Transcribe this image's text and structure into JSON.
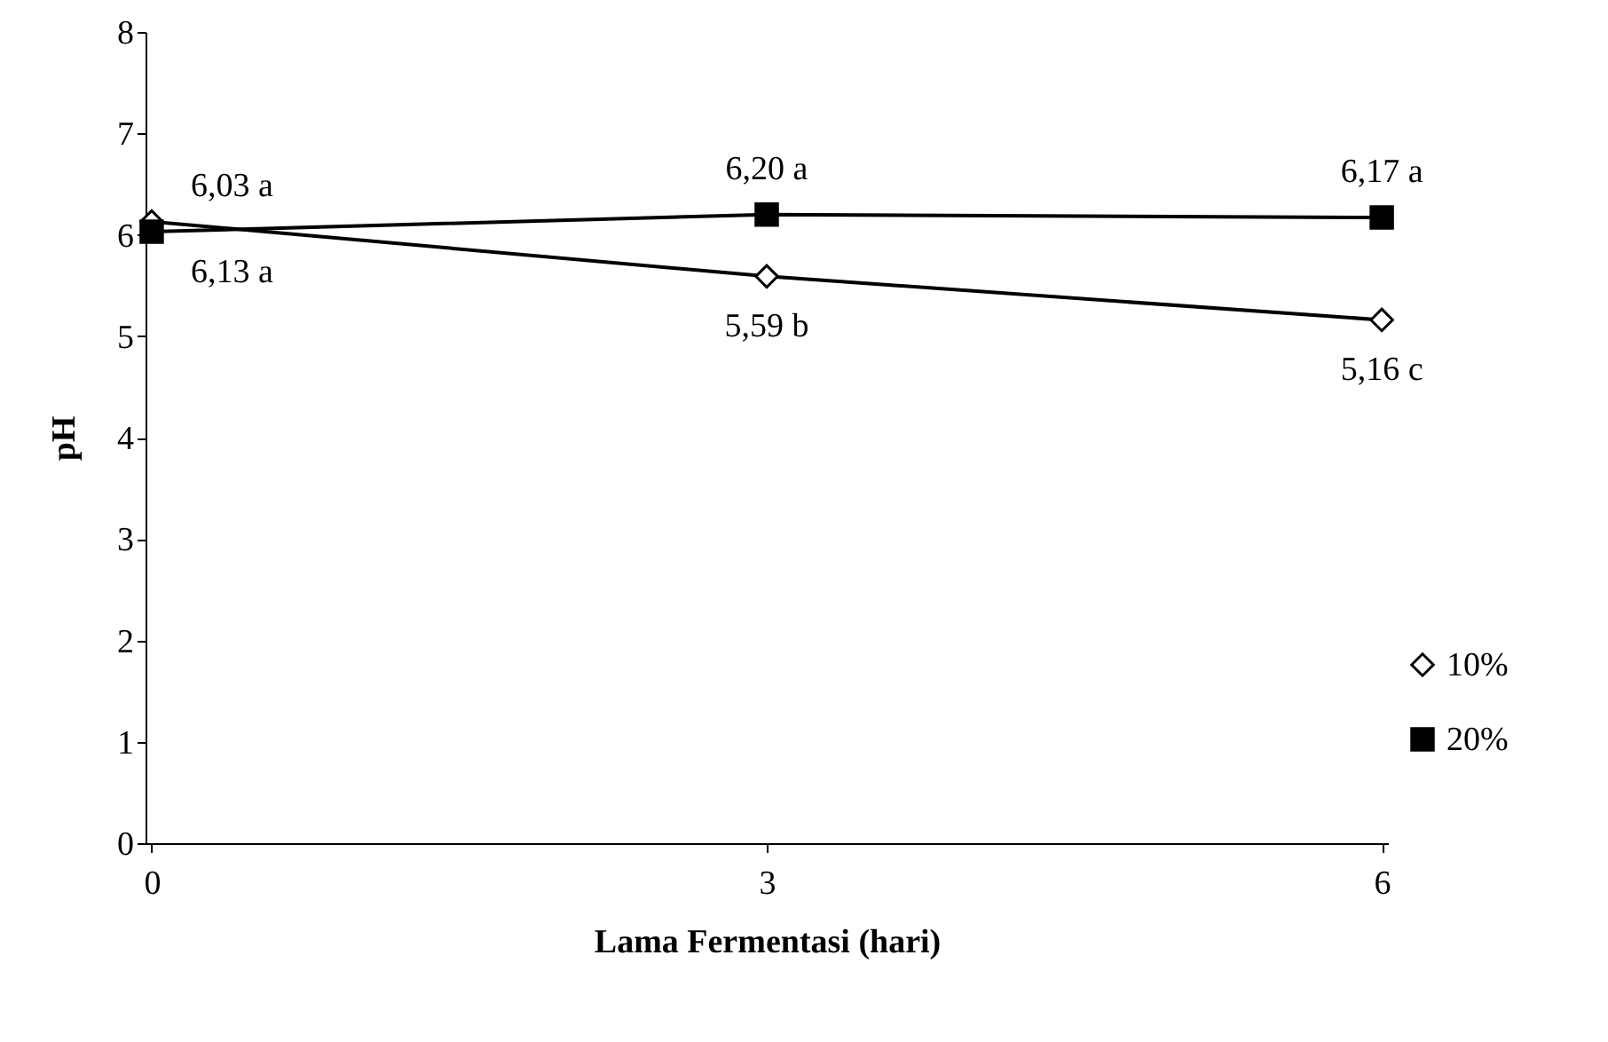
{
  "chart_data": {
    "type": "line",
    "xlabel": "Lama Fermentasi (hari)",
    "ylabel": "pH",
    "categories": [
      "0",
      "3",
      "6"
    ],
    "series": [
      {
        "name": "10%",
        "color": "#000000",
        "marker": "diamond",
        "values": [
          6.13,
          5.59,
          5.16
        ],
        "value_labels": [
          "6,13 a",
          "5,59 b",
          "5,16 c"
        ]
      },
      {
        "name": "20%",
        "color": "#000000",
        "marker": "square",
        "values": [
          6.03,
          6.2,
          6.17
        ],
        "value_labels": [
          "6,03 a",
          "6,20 a",
          "6,17 a"
        ]
      }
    ],
    "ylim": [
      0,
      8
    ],
    "yticks": [
      0,
      1,
      2,
      3,
      4,
      5,
      6,
      7,
      8
    ],
    "grid": false,
    "legend": "bottom right"
  }
}
